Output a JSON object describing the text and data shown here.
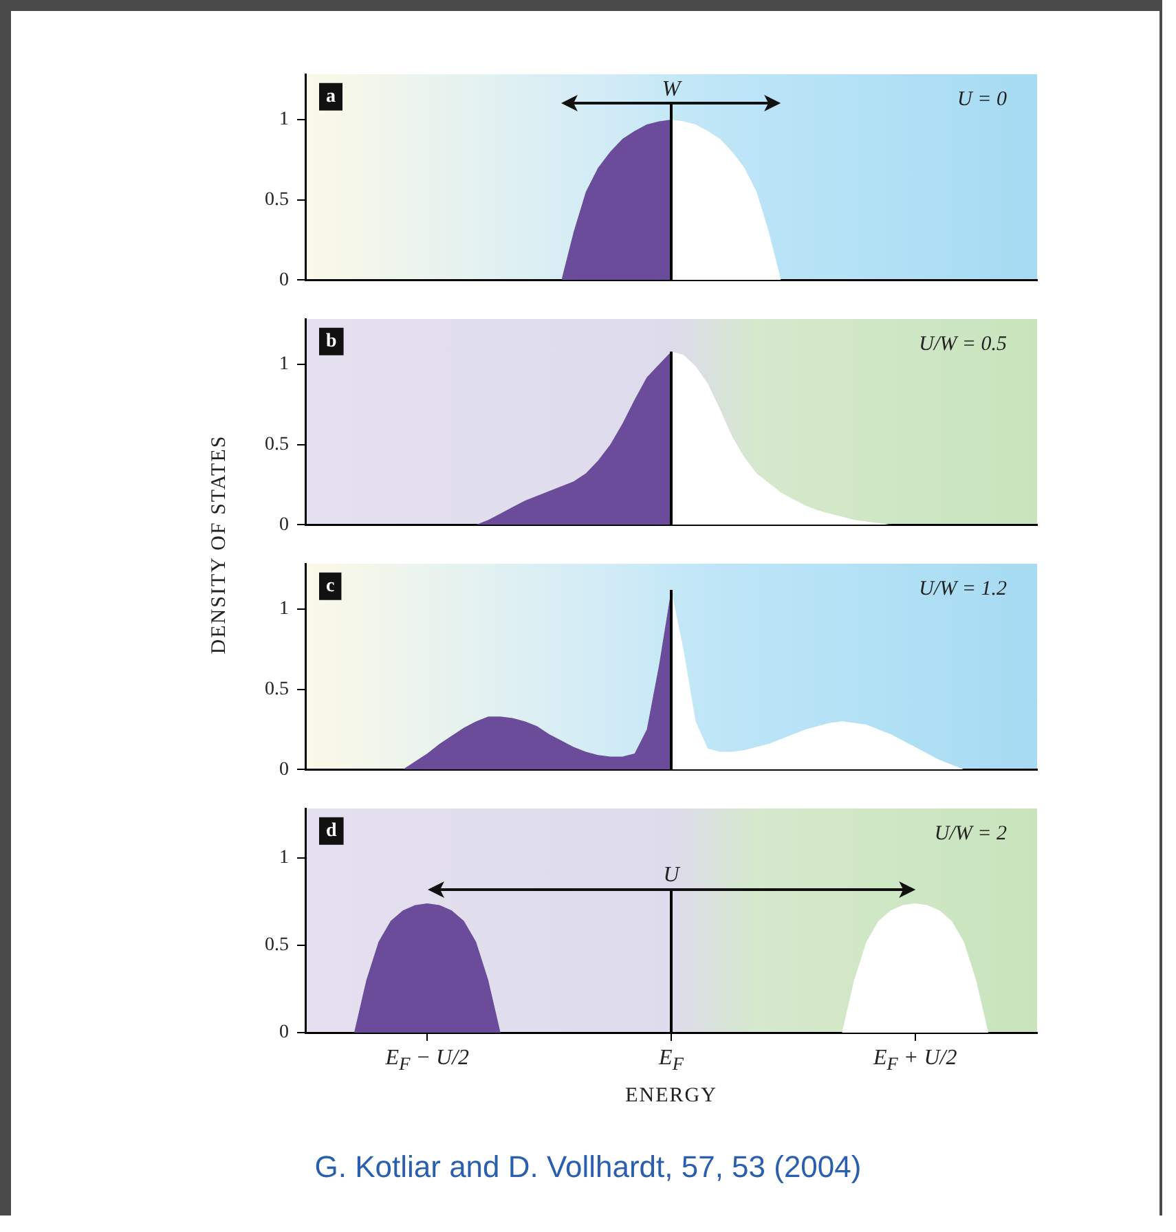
{
  "chart_data": [
    {
      "type": "area",
      "categories": [
        null,
        null,
        null,
        null,
        null,
        null,
        null,
        null,
        null,
        null,
        "E$_{F}$ − U/2",
        null,
        null,
        null,
        null,
        null,
        null,
        null,
        null,
        null,
        null,
        null,
        null,
        null,
        null,
        null,
        null,
        null,
        null,
        null,
        "E$_{F}$",
        null,
        null,
        null,
        null,
        null,
        null,
        null,
        null,
        null,
        null,
        null,
        null,
        null,
        null,
        null,
        null,
        null,
        null,
        null,
        "E$_{F}$ + U/2",
        null,
        null,
        null,
        null,
        null,
        null,
        null,
        null,
        null,
        null
      ],
      "ylim": [
        0,
        1.28
      ],
      "yticks": [
        0,
        0.5,
        1
      ],
      "tick_labels": "y",
      "legend": false,
      "series": [
        {
          "color": "#6b4c9a",
          "values": [
            null,
            null,
            null,
            null,
            null,
            null,
            null,
            null,
            null,
            null,
            null,
            null,
            null,
            null,
            null,
            null,
            null,
            null,
            null,
            null,
            null,
            0,
            0.3,
            0.55,
            0.7,
            0.8,
            0.88,
            0.93,
            0.97,
            0.99,
            1.0,
            null,
            null,
            null,
            null,
            null,
            null,
            null,
            null,
            null,
            null,
            null,
            null,
            null,
            null,
            null,
            null,
            null,
            null,
            null,
            null,
            null,
            null,
            null,
            null,
            null,
            null,
            null,
            null,
            null,
            null
          ]
        },
        {
          "color": "#ffffff",
          "values": [
            null,
            null,
            null,
            null,
            null,
            null,
            null,
            null,
            null,
            null,
            null,
            null,
            null,
            null,
            null,
            null,
            null,
            null,
            null,
            null,
            null,
            null,
            null,
            null,
            null,
            null,
            null,
            null,
            null,
            null,
            1.0,
            0.99,
            0.97,
            0.93,
            0.88,
            0.8,
            0.7,
            0.55,
            0.3,
            0,
            null,
            null,
            null,
            null,
            null,
            null,
            null,
            null,
            null,
            null,
            null,
            null,
            null,
            null,
            null,
            null,
            null,
            null,
            null,
            null,
            null
          ]
        }
      ],
      "ref_lines": [
        {
          "axis": "x",
          "value": "E$_{F}$",
          "color": "#000000"
        }
      ],
      "annotations": [
        "a",
        "U = 0",
        {
          "text": "W",
          "x": "E$_{F}$",
          "y": 1.1
        }
      ]
    },
    {
      "type": "area",
      "categories": [
        null,
        null,
        null,
        null,
        null,
        null,
        null,
        null,
        null,
        null,
        "E$_{F}$ − U/2",
        null,
        null,
        null,
        null,
        null,
        null,
        null,
        null,
        null,
        null,
        null,
        null,
        null,
        null,
        null,
        null,
        null,
        null,
        null,
        "E$_{F}$",
        null,
        null,
        null,
        null,
        null,
        null,
        null,
        null,
        null,
        null,
        null,
        null,
        null,
        null,
        null,
        null,
        null,
        null,
        null,
        "E$_{F}$ + U/2",
        null,
        null,
        null,
        null,
        null,
        null,
        null,
        null,
        null,
        null
      ],
      "ylim": [
        0,
        1.28
      ],
      "yticks": [
        0,
        0.5,
        1
      ],
      "tick_labels": "y",
      "legend": false,
      "ylabel": "DENSITY OF STATES",
      "series": [
        {
          "color": "#6b4c9a",
          "values": [
            null,
            null,
            null,
            null,
            null,
            null,
            null,
            null,
            null,
            null,
            null,
            null,
            null,
            null,
            0,
            0.03,
            0.07,
            0.11,
            0.15,
            0.18,
            0.21,
            0.24,
            0.27,
            0.32,
            0.4,
            0.5,
            0.63,
            0.78,
            0.92,
            1.0,
            1.08,
            null,
            null,
            null,
            null,
            null,
            null,
            null,
            null,
            null,
            null,
            null,
            null,
            null,
            null,
            null,
            null,
            null,
            null,
            null,
            null,
            null,
            null,
            null,
            null,
            null,
            null,
            null,
            null,
            null,
            null
          ]
        },
        {
          "color": "#ffffff",
          "values": [
            null,
            null,
            null,
            null,
            null,
            null,
            null,
            null,
            null,
            null,
            null,
            null,
            null,
            null,
            null,
            null,
            null,
            null,
            null,
            null,
            null,
            null,
            null,
            null,
            null,
            null,
            null,
            null,
            null,
            null,
            1.08,
            1.06,
            0.99,
            0.88,
            0.72,
            0.55,
            0.42,
            0.32,
            0.26,
            0.2,
            0.16,
            0.12,
            0.09,
            0.07,
            0.05,
            0.03,
            0.02,
            0.01,
            0,
            null,
            null,
            null,
            null,
            null,
            null,
            null,
            null,
            null,
            null,
            null,
            null
          ]
        }
      ],
      "ref_lines": [
        {
          "axis": "x",
          "value": "E$_{F}$",
          "color": "#000000"
        }
      ],
      "annotations": [
        "b",
        "U/W = 0.5"
      ]
    },
    {
      "type": "area",
      "categories": [
        null,
        null,
        null,
        null,
        null,
        null,
        null,
        null,
        null,
        null,
        "E$_{F}$ − U/2",
        null,
        null,
        null,
        null,
        null,
        null,
        null,
        null,
        null,
        null,
        null,
        null,
        null,
        null,
        null,
        null,
        null,
        null,
        null,
        "E$_{F}$",
        null,
        null,
        null,
        null,
        null,
        null,
        null,
        null,
        null,
        null,
        null,
        null,
        null,
        null,
        null,
        null,
        null,
        null,
        null,
        "E$_{F}$ + U/2",
        null,
        null,
        null,
        null,
        null,
        null,
        null,
        null,
        null,
        null
      ],
      "ylim": [
        0,
        1.28
      ],
      "yticks": [
        0,
        0.5,
        1
      ],
      "tick_labels": "y",
      "legend": false,
      "series": [
        {
          "color": "#6b4c9a",
          "values": [
            null,
            null,
            null,
            null,
            null,
            null,
            null,
            null,
            0,
            0.05,
            0.1,
            0.16,
            0.21,
            0.26,
            0.3,
            0.33,
            0.33,
            0.32,
            0.3,
            0.27,
            0.22,
            0.18,
            0.14,
            0.11,
            0.09,
            0.08,
            0.08,
            0.1,
            0.25,
            0.65,
            1.12,
            null,
            null,
            null,
            null,
            null,
            null,
            null,
            null,
            null,
            null,
            null,
            null,
            null,
            null,
            null,
            null,
            null,
            null,
            null,
            null,
            null,
            null,
            null,
            null,
            null,
            null,
            null,
            null,
            null,
            null
          ]
        },
        {
          "color": "#ffffff",
          "values": [
            null,
            null,
            null,
            null,
            null,
            null,
            null,
            null,
            null,
            null,
            null,
            null,
            null,
            null,
            null,
            null,
            null,
            null,
            null,
            null,
            null,
            null,
            null,
            null,
            null,
            null,
            null,
            null,
            null,
            null,
            1.12,
            0.75,
            0.3,
            0.13,
            0.11,
            0.11,
            0.12,
            0.14,
            0.16,
            0.19,
            0.22,
            0.25,
            0.27,
            0.29,
            0.3,
            0.29,
            0.28,
            0.25,
            0.22,
            0.18,
            0.14,
            0.1,
            0.06,
            0.03,
            0,
            null,
            null,
            null,
            null,
            null,
            null
          ]
        }
      ],
      "ref_lines": [
        {
          "axis": "x",
          "value": "E$_{F}$",
          "color": "#000000"
        }
      ],
      "annotations": [
        "c",
        "U/W = 1.2"
      ]
    },
    {
      "type": "area",
      "categories": [
        null,
        null,
        null,
        null,
        null,
        null,
        null,
        null,
        null,
        null,
        "E$_{F}$ − U/2",
        null,
        null,
        null,
        null,
        null,
        null,
        null,
        null,
        null,
        null,
        null,
        null,
        null,
        null,
        null,
        null,
        null,
        null,
        null,
        "E$_{F}$",
        null,
        null,
        null,
        null,
        null,
        null,
        null,
        null,
        null,
        null,
        null,
        null,
        null,
        null,
        null,
        null,
        null,
        null,
        null,
        "E$_{F}$ + U/2",
        null,
        null,
        null,
        null,
        null,
        null,
        null,
        null,
        null,
        null
      ],
      "ylim": [
        0,
        1.28
      ],
      "yticks": [
        0,
        0.5,
        1
      ],
      "legend": false,
      "xlabel": "ENERGY",
      "series": [
        {
          "color": "#6b4c9a",
          "values": [
            null,
            null,
            null,
            null,
            0,
            0.3,
            0.52,
            0.64,
            0.7,
            0.73,
            0.74,
            0.73,
            0.7,
            0.64,
            0.52,
            0.3,
            0,
            null,
            null,
            null,
            null,
            null,
            null,
            null,
            null,
            null,
            null,
            null,
            null,
            null,
            null,
            null,
            null,
            null,
            null,
            null,
            null,
            null,
            null,
            null,
            null,
            null,
            null,
            null,
            null,
            null,
            null,
            null,
            null,
            null,
            null,
            null,
            null,
            null,
            null,
            null,
            null,
            null,
            null,
            null,
            null
          ]
        },
        {
          "color": "#ffffff",
          "values": [
            null,
            null,
            null,
            null,
            null,
            null,
            null,
            null,
            null,
            null,
            null,
            null,
            null,
            null,
            null,
            null,
            null,
            null,
            null,
            null,
            null,
            null,
            null,
            null,
            null,
            null,
            null,
            null,
            null,
            null,
            null,
            null,
            null,
            null,
            null,
            null,
            null,
            null,
            null,
            null,
            null,
            null,
            null,
            null,
            0,
            0.3,
            0.52,
            0.64,
            0.7,
            0.73,
            0.74,
            0.73,
            0.7,
            0.64,
            0.52,
            0.3,
            0,
            null,
            null,
            null,
            null
          ]
        }
      ],
      "ref_lines": [
        {
          "axis": "x",
          "value": "E$_{F}$",
          "color": "#000000"
        }
      ],
      "annotations": [
        "d",
        "U/W = 2",
        {
          "text": "U",
          "x": "E$_{F}$",
          "y": 0.82
        },
        "G. Kotliar and D. Vollhardt, 57, 53 (2004)"
      ]
    }
  ]
}
